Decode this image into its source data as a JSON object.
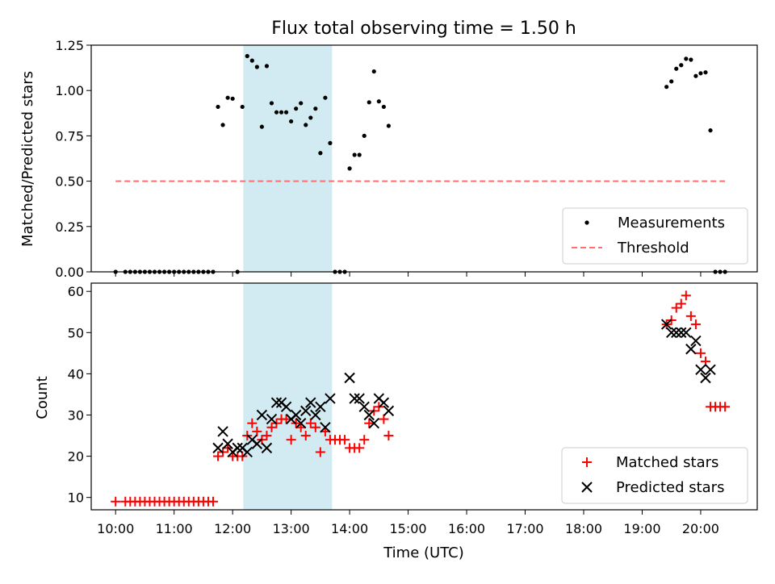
{
  "colors": {
    "measurements": "#000000",
    "threshold": "#ff6f6f",
    "matched": "#ff0000",
    "predicted": "#000000",
    "shaded_band": "#add8e6"
  },
  "chart_data": [
    {
      "type": "scatter",
      "title": "Flux total observing time = 1.50 h",
      "xlabel": "",
      "ylabel": "Matched/Predicted stars",
      "ylim": [
        0,
        1.25
      ],
      "yticks": [
        "0.00",
        "0.25",
        "0.50",
        "0.75",
        "1.00",
        "1.25"
      ],
      "shaded_interval": {
        "x": [
          "12:11",
          "13:42"
        ]
      },
      "legend": {
        "placement": "lower-right",
        "entries": [
          "Measurements",
          "Threshold"
        ]
      },
      "series": [
        {
          "name": "Measurements",
          "marker": "dot",
          "points": [
            [
              "10:00",
              0
            ],
            [
              "10:10",
              0
            ],
            [
              "10:15",
              0
            ],
            [
              "10:20",
              0
            ],
            [
              "10:25",
              0
            ],
            [
              "10:30",
              0
            ],
            [
              "10:35",
              0
            ],
            [
              "10:40",
              0
            ],
            [
              "10:45",
              0
            ],
            [
              "10:50",
              0
            ],
            [
              "10:55",
              0
            ],
            [
              "11:00",
              0
            ],
            [
              "11:05",
              0
            ],
            [
              "11:10",
              0
            ],
            [
              "11:15",
              0
            ],
            [
              "11:20",
              0
            ],
            [
              "11:25",
              0
            ],
            [
              "11:30",
              0
            ],
            [
              "11:35",
              0
            ],
            [
              "11:40",
              0
            ],
            [
              "11:45",
              0.91
            ],
            [
              "11:50",
              0.81
            ],
            [
              "11:55",
              0.96
            ],
            [
              "12:00",
              0.955
            ],
            [
              "12:05",
              0
            ],
            [
              "12:10",
              0.91
            ],
            [
              "12:15",
              1.19
            ],
            [
              "12:20",
              1.165
            ],
            [
              "12:25",
              1.13
            ],
            [
              "12:30",
              0.8
            ],
            [
              "12:35",
              1.135
            ],
            [
              "12:40",
              0.93
            ],
            [
              "12:45",
              0.88
            ],
            [
              "12:50",
              0.88
            ],
            [
              "12:55",
              0.88
            ],
            [
              "13:00",
              0.83
            ],
            [
              "13:05",
              0.9
            ],
            [
              "13:10",
              0.93
            ],
            [
              "13:15",
              0.81
            ],
            [
              "13:20",
              0.85
            ],
            [
              "13:25",
              0.9
            ],
            [
              "13:30",
              0.655
            ],
            [
              "13:35",
              0.96
            ],
            [
              "13:40",
              0.71
            ],
            [
              "13:45",
              0
            ],
            [
              "13:50",
              0
            ],
            [
              "13:55",
              0
            ],
            [
              "14:00",
              0.57
            ],
            [
              "14:05",
              0.645
            ],
            [
              "14:10",
              0.645
            ],
            [
              "14:15",
              0.75
            ],
            [
              "14:20",
              0.935
            ],
            [
              "14:25",
              1.105
            ],
            [
              "14:30",
              0.94
            ],
            [
              "14:35",
              0.91
            ],
            [
              "14:40",
              0.805
            ],
            [
              "19:25",
              1.02
            ],
            [
              "19:30",
              1.05
            ],
            [
              "19:35",
              1.12
            ],
            [
              "19:40",
              1.14
            ],
            [
              "19:45",
              1.175
            ],
            [
              "19:50",
              1.17
            ],
            [
              "19:55",
              1.08
            ],
            [
              "20:00",
              1.095
            ],
            [
              "20:05",
              1.1
            ],
            [
              "20:10",
              0.78
            ],
            [
              "20:15",
              0
            ],
            [
              "20:20",
              0
            ],
            [
              "20:25",
              0
            ]
          ]
        },
        {
          "name": "Threshold",
          "style": "dashed",
          "points": [
            [
              "10:00",
              0.5
            ],
            [
              "20:25",
              0.5
            ]
          ]
        }
      ]
    },
    {
      "type": "scatter",
      "title": "",
      "xlabel": "Time (UTC)",
      "ylabel": "Count",
      "ylim": [
        7,
        62
      ],
      "yticks": [
        "10",
        "20",
        "30",
        "40",
        "50",
        "60"
      ],
      "xticks": [
        "10:00",
        "11:00",
        "12:00",
        "13:00",
        "14:00",
        "15:00",
        "16:00",
        "17:00",
        "18:00",
        "19:00",
        "20:00"
      ],
      "xlim": [
        "09:35",
        "20:58"
      ],
      "shaded_interval": {
        "x": [
          "12:11",
          "13:42"
        ]
      },
      "legend": {
        "placement": "lower-right",
        "entries": [
          "Matched stars",
          "Predicted stars"
        ]
      },
      "series": [
        {
          "name": "Matched stars",
          "marker": "plus",
          "points": [
            [
              "10:00",
              9
            ],
            [
              "10:10",
              9
            ],
            [
              "10:15",
              9
            ],
            [
              "10:20",
              9
            ],
            [
              "10:25",
              9
            ],
            [
              "10:30",
              9
            ],
            [
              "10:35",
              9
            ],
            [
              "10:40",
              9
            ],
            [
              "10:45",
              9
            ],
            [
              "10:50",
              9
            ],
            [
              "10:55",
              9
            ],
            [
              "11:00",
              9
            ],
            [
              "11:05",
              9
            ],
            [
              "11:10",
              9
            ],
            [
              "11:15",
              9
            ],
            [
              "11:20",
              9
            ],
            [
              "11:25",
              9
            ],
            [
              "11:30",
              9
            ],
            [
              "11:35",
              9
            ],
            [
              "11:40",
              9
            ],
            [
              "11:45",
              20
            ],
            [
              "11:50",
              21
            ],
            [
              "11:55",
              22
            ],
            [
              "12:00",
              20
            ],
            [
              "12:05",
              20
            ],
            [
              "12:10",
              20
            ],
            [
              "12:15",
              25
            ],
            [
              "12:20",
              28
            ],
            [
              "12:25",
              26
            ],
            [
              "12:30",
              24
            ],
            [
              "12:35",
              25
            ],
            [
              "12:40",
              27
            ],
            [
              "12:45",
              28
            ],
            [
              "12:50",
              29
            ],
            [
              "12:55",
              29
            ],
            [
              "13:00",
              24
            ],
            [
              "13:05",
              28
            ],
            [
              "13:10",
              27
            ],
            [
              "13:15",
              25
            ],
            [
              "13:20",
              28
            ],
            [
              "13:25",
              27
            ],
            [
              "13:30",
              21
            ],
            [
              "13:35",
              26
            ],
            [
              "13:40",
              24
            ],
            [
              "13:45",
              24
            ],
            [
              "13:50",
              24
            ],
            [
              "13:55",
              24
            ],
            [
              "14:00",
              22
            ],
            [
              "14:05",
              22
            ],
            [
              "14:10",
              22
            ],
            [
              "14:15",
              24
            ],
            [
              "14:20",
              28
            ],
            [
              "14:25",
              31
            ],
            [
              "14:30",
              32
            ],
            [
              "14:35",
              29
            ],
            [
              "14:40",
              25
            ],
            [
              "19:25",
              52
            ],
            [
              "19:30",
              53
            ],
            [
              "19:35",
              56
            ],
            [
              "19:40",
              57
            ],
            [
              "19:45",
              59
            ],
            [
              "19:50",
              54
            ],
            [
              "19:55",
              52
            ],
            [
              "20:00",
              45
            ],
            [
              "20:05",
              43
            ],
            [
              "20:10",
              32
            ],
            [
              "20:15",
              32
            ],
            [
              "20:20",
              32
            ],
            [
              "20:25",
              32
            ]
          ]
        },
        {
          "name": "Predicted stars",
          "marker": "x",
          "points": [
            [
              "11:45",
              22
            ],
            [
              "11:50",
              26
            ],
            [
              "11:55",
              23
            ],
            [
              "12:00",
              21
            ],
            [
              "12:05",
              22
            ],
            [
              "12:10",
              22
            ],
            [
              "12:15",
              21
            ],
            [
              "12:20",
              24
            ],
            [
              "12:25",
              23
            ],
            [
              "12:30",
              30
            ],
            [
              "12:35",
              22
            ],
            [
              "12:40",
              29
            ],
            [
              "12:45",
              33
            ],
            [
              "12:50",
              33
            ],
            [
              "12:55",
              32
            ],
            [
              "13:00",
              29
            ],
            [
              "13:05",
              30
            ],
            [
              "13:10",
              28
            ],
            [
              "13:15",
              31
            ],
            [
              "13:20",
              33
            ],
            [
              "13:25",
              30
            ],
            [
              "13:30",
              32
            ],
            [
              "13:35",
              27
            ],
            [
              "13:40",
              34
            ],
            [
              "14:00",
              39
            ],
            [
              "14:05",
              34
            ],
            [
              "14:10",
              34
            ],
            [
              "14:15",
              32
            ],
            [
              "14:20",
              30
            ],
            [
              "14:25",
              28
            ],
            [
              "14:30",
              34
            ],
            [
              "14:35",
              33
            ],
            [
              "14:40",
              31
            ],
            [
              "19:25",
              52
            ],
            [
              "19:30",
              50
            ],
            [
              "19:35",
              50
            ],
            [
              "19:40",
              50
            ],
            [
              "19:45",
              50
            ],
            [
              "19:50",
              46
            ],
            [
              "19:55",
              48
            ],
            [
              "20:00",
              41
            ],
            [
              "20:05",
              39
            ],
            [
              "20:10",
              41
            ]
          ]
        }
      ]
    }
  ]
}
